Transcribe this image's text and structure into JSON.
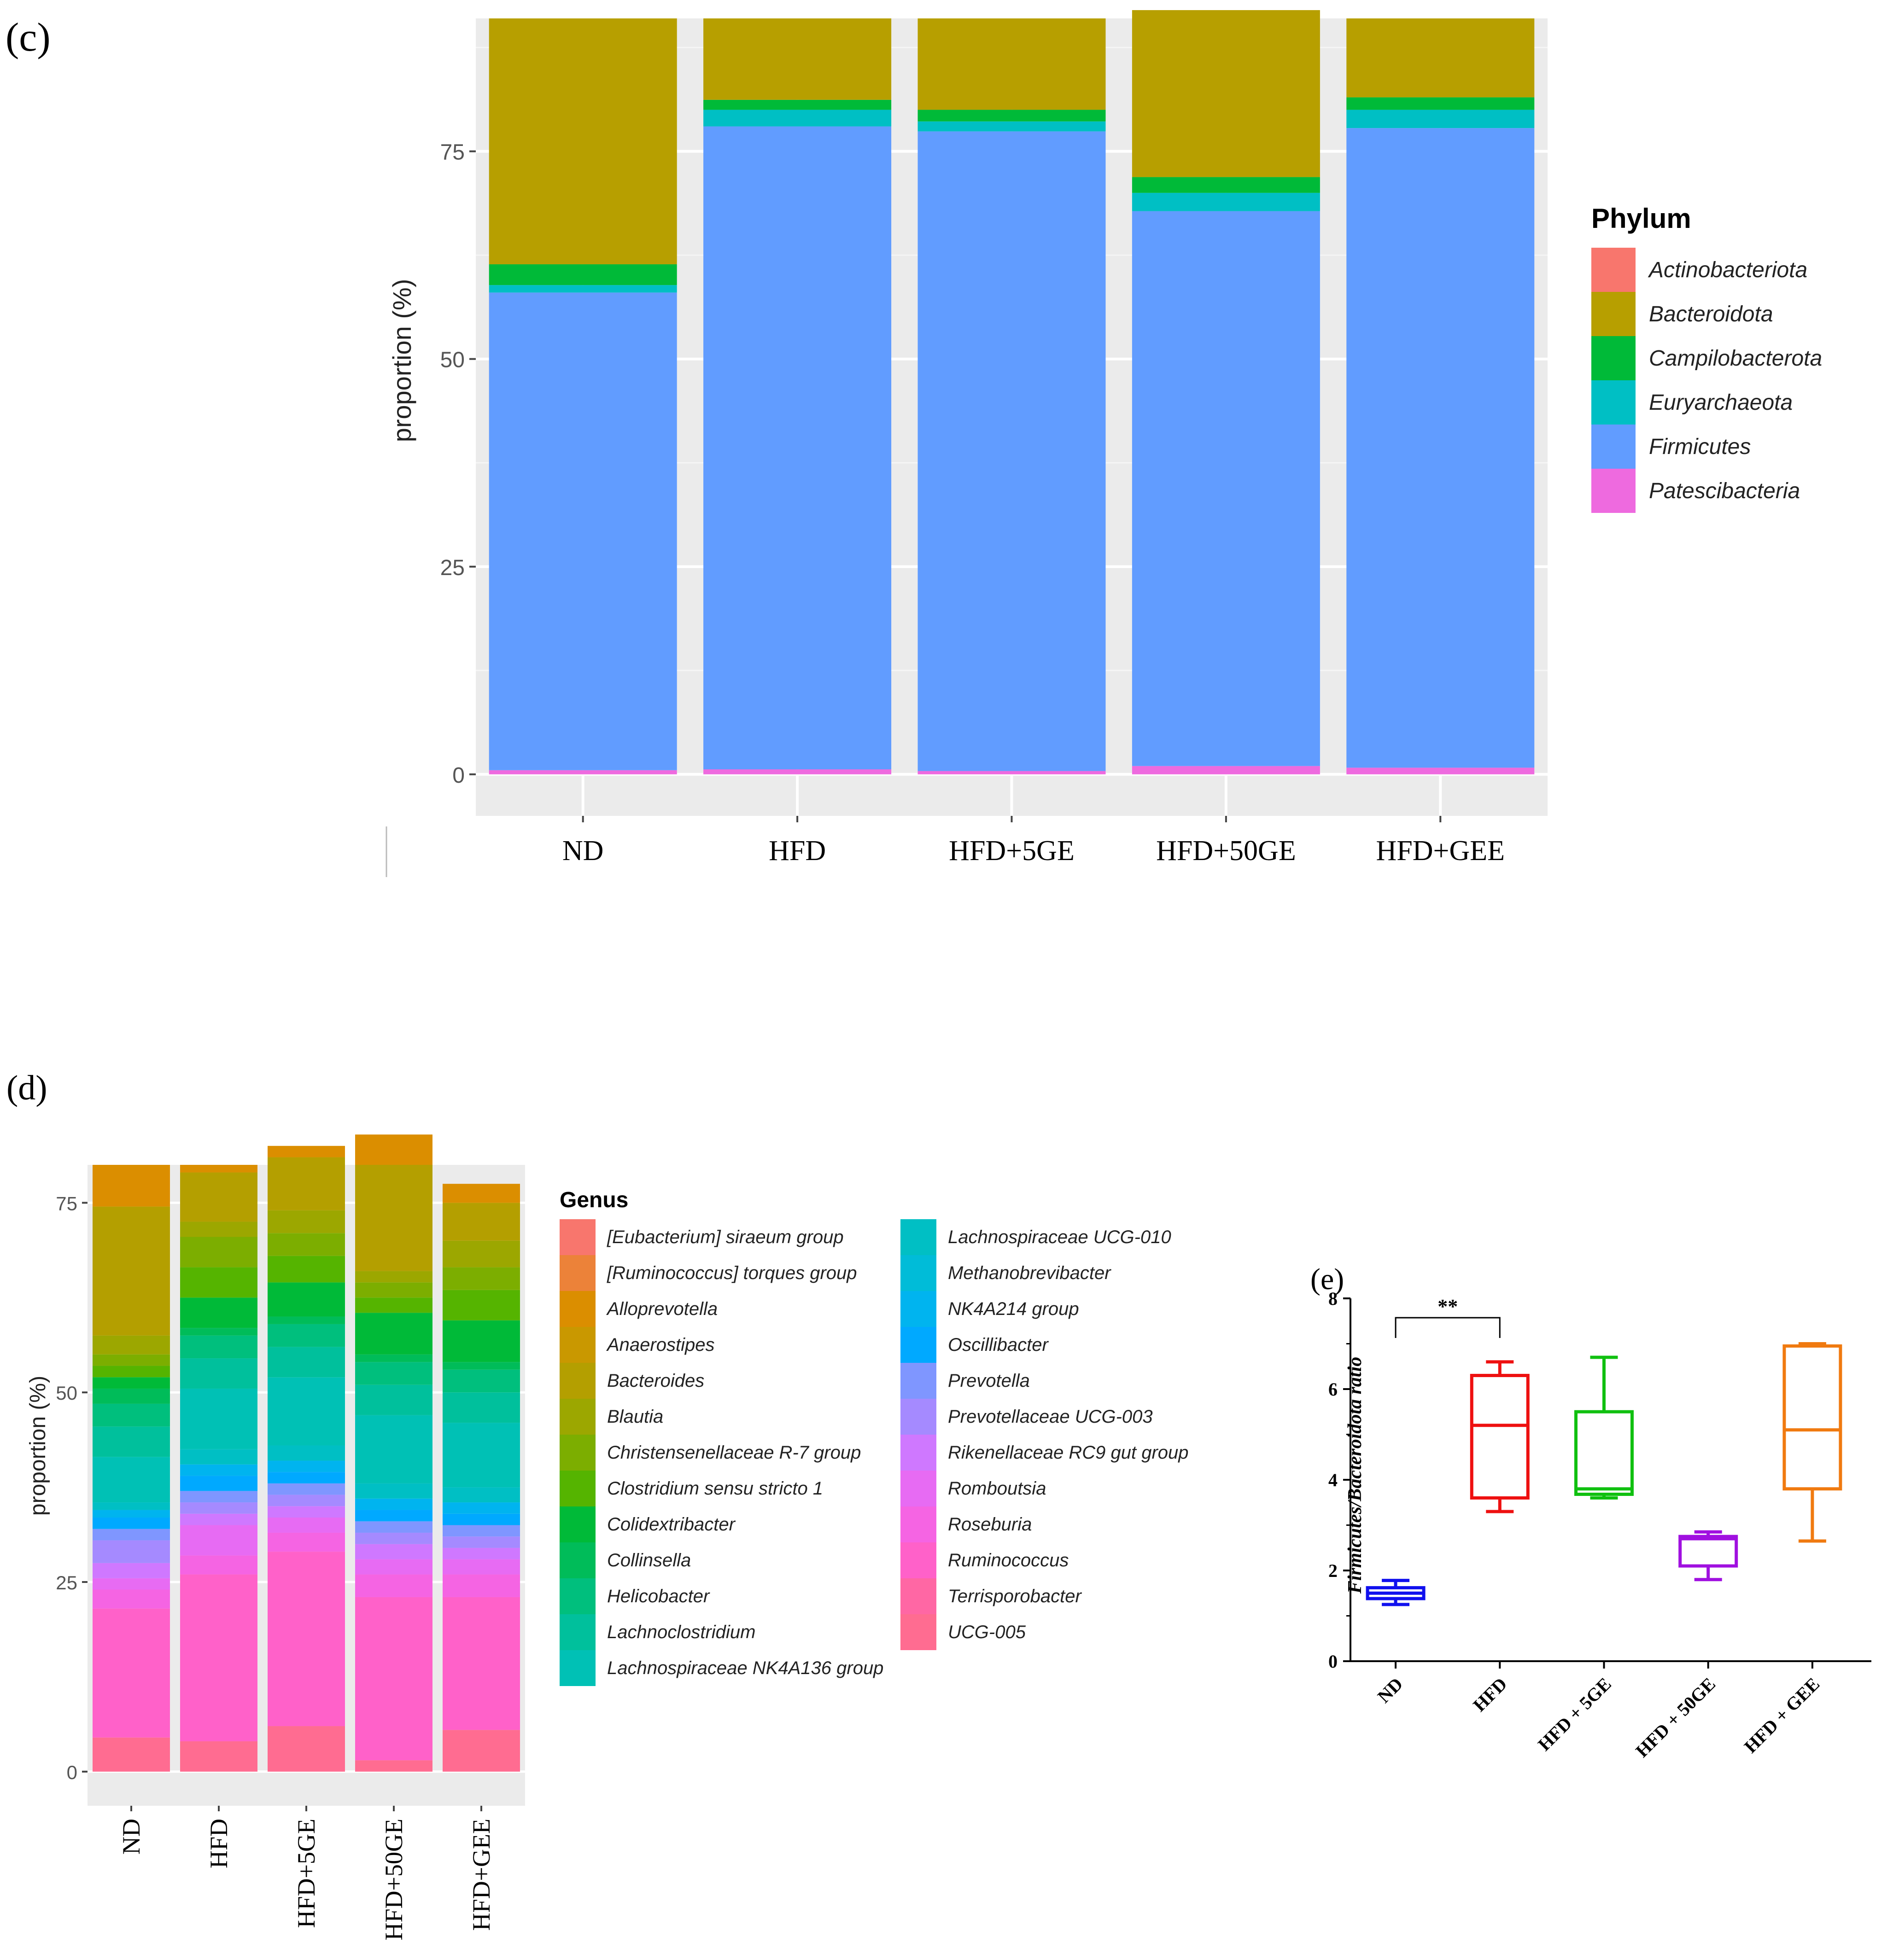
{
  "panels": {
    "c_label": "(c)",
    "d_label": "(d)",
    "e_label": "(e)"
  },
  "chart_data": [
    {
      "id": "c",
      "type": "bar",
      "stacked": true,
      "categories": [
        "ND",
        "HFD",
        "HFD+5GE",
        "HFD+50GE",
        "HFD+GEE"
      ],
      "ylabel": "proportion (%)",
      "ylim": [
        -5,
        91
      ],
      "yticks": [
        0,
        25,
        50,
        75
      ],
      "grid": true,
      "legend_title": "Phylum",
      "legend_position": "right",
      "series": [
        {
          "name": "Patescibacteria",
          "color": "#ee6adf",
          "values": [
            0.5,
            0.6,
            0.4,
            1.0,
            0.8
          ]
        },
        {
          "name": "Firmicutes",
          "color": "#619cff",
          "values": [
            57.5,
            77.4,
            77.0,
            66.8,
            77.0
          ]
        },
        {
          "name": "Euryarchaeota",
          "color": "#00bfc4",
          "values": [
            0.9,
            2.0,
            1.2,
            2.2,
            2.2
          ]
        },
        {
          "name": "Campilobacterota",
          "color": "#00ba38",
          "values": [
            2.5,
            1.2,
            1.4,
            1.9,
            1.5
          ]
        },
        {
          "name": "Bacteroidota",
          "color": "#b79f00",
          "values": [
            29.6,
            9.8,
            11.0,
            20.1,
            9.5
          ]
        },
        {
          "name": "Actinobacteriota",
          "color": "#f8766d",
          "values": [
            0,
            0,
            0,
            0,
            0
          ]
        }
      ],
      "legend_entries": [
        "Actinobacteriota",
        "Bacteroidota",
        "Campilobacterota",
        "Euryarchaeota",
        "Firmicutes",
        "Patescibacteria"
      ]
    },
    {
      "id": "d",
      "type": "bar",
      "stacked": true,
      "categories": [
        "ND",
        "HFD",
        "HFD+5GE",
        "HFD+50GE",
        "HFD+GEE"
      ],
      "ylabel": "proportion (%)",
      "ylim": [
        -4.5,
        80
      ],
      "yticks": [
        0,
        25,
        50,
        75
      ],
      "grid": true,
      "legend_title": "Genus",
      "legend_position": "right",
      "legend_entries": [
        {
          "name": "[Eubacterium] siraeum group",
          "color": "#f8766d"
        },
        {
          "name": "[Ruminococcus] torques group",
          "color": "#ec8239"
        },
        {
          "name": "Alloprevotella",
          "color": "#db8e00"
        },
        {
          "name": "Anaerostipes",
          "color": "#c99800"
        },
        {
          "name": "Bacteroides",
          "color": "#b49f00"
        },
        {
          "name": "Blautia",
          "color": "#9ca700"
        },
        {
          "name": "Christensenellaceae R-7 group",
          "color": "#7cae00"
        },
        {
          "name": "Clostridium sensu stricto 1",
          "color": "#55b400"
        },
        {
          "name": "Colidextribacter",
          "color": "#00ba38"
        },
        {
          "name": "Collinsella",
          "color": "#00bc59"
        },
        {
          "name": "Helicobacter",
          "color": "#00bf7d"
        },
        {
          "name": "Lachnoclostridium",
          "color": "#00c09c"
        },
        {
          "name": "Lachnospiraceae NK4A136 group",
          "color": "#00c1b5"
        },
        {
          "name": "Lachnospiraceae UCG-010",
          "color": "#00bfc4"
        },
        {
          "name": "Methanobrevibacter",
          "color": "#00bcd8"
        },
        {
          "name": "NK4A214 group",
          "color": "#00b4ef"
        },
        {
          "name": "Oscillibacter",
          "color": "#00a9ff"
        },
        {
          "name": "Prevotella",
          "color": "#7f96ff"
        },
        {
          "name": "Prevotellaceae UCG-003",
          "color": "#a58aff"
        },
        {
          "name": "Rikenellaceae RC9 gut group",
          "color": "#cf78ff"
        },
        {
          "name": "Romboutsia",
          "color": "#e76bf3"
        },
        {
          "name": "Roseburia",
          "color": "#f564e3"
        },
        {
          "name": "Ruminococcus",
          "color": "#ff61c9"
        },
        {
          "name": "Terrisporobacter",
          "color": "#ff67a4"
        },
        {
          "name": "UCG-005",
          "color": "#ff6c91"
        }
      ],
      "stacks": [
        {
          "category": "ND",
          "segments": [
            {
              "name": "UCG-005",
              "value": 4.5
            },
            {
              "name": "Ruminococcus",
              "value": 17.0
            },
            {
              "name": "Roseburia",
              "value": 2.5
            },
            {
              "name": "Romboutsia",
              "value": 1.5
            },
            {
              "name": "Rikenellaceae RC9 gut group",
              "value": 2.0
            },
            {
              "name": "Prevotellaceae UCG-003",
              "value": 3.0
            },
            {
              "name": "Prevotella",
              "value": 1.5
            },
            {
              "name": "Oscillibacter",
              "value": 1.5
            },
            {
              "name": "NK4A214 group",
              "value": 1.0
            },
            {
              "name": "Lachnospiraceae UCG-010",
              "value": 1.0
            },
            {
              "name": "Lachnospiraceae NK4A136 group",
              "value": 6.0
            },
            {
              "name": "Lachnoclostridium",
              "value": 4.0
            },
            {
              "name": "Helicobacter",
              "value": 3.0
            },
            {
              "name": "Collinsella",
              "value": 2.0
            },
            {
              "name": "Colidextribacter",
              "value": 1.5
            },
            {
              "name": "Clostridium sensu stricto 1",
              "value": 1.5
            },
            {
              "name": "Christensenellaceae R-7 group",
              "value": 1.5
            },
            {
              "name": "Blautia",
              "value": 2.5
            },
            {
              "name": "Bacteroides",
              "value": 17.0
            },
            {
              "name": "Alloprevotella",
              "value": 5.5
            }
          ]
        },
        {
          "category": "HFD",
          "segments": [
            {
              "name": "UCG-005",
              "value": 4.0
            },
            {
              "name": "Ruminococcus",
              "value": 22.0
            },
            {
              "name": "Roseburia",
              "value": 2.5
            },
            {
              "name": "Romboutsia",
              "value": 4.0
            },
            {
              "name": "Rikenellaceae RC9 gut group",
              "value": 1.5
            },
            {
              "name": "Prevotellaceae UCG-003",
              "value": 1.5
            },
            {
              "name": "Prevotella",
              "value": 1.5
            },
            {
              "name": "Oscillibacter",
              "value": 2.0
            },
            {
              "name": "NK4A214 group",
              "value": 1.5
            },
            {
              "name": "Lachnospiraceae UCG-010",
              "value": 2.0
            },
            {
              "name": "Lachnospiraceae NK4A136 group",
              "value": 8.0
            },
            {
              "name": "Lachnoclostridium",
              "value": 4.0
            },
            {
              "name": "Helicobacter",
              "value": 3.0
            },
            {
              "name": "Collinsella",
              "value": 1.0
            },
            {
              "name": "Colidextribacter",
              "value": 4.0
            },
            {
              "name": "Clostridium sensu stricto 1",
              "value": 4.0
            },
            {
              "name": "Christensenellaceae R-7 group",
              "value": 4.0
            },
            {
              "name": "Blautia",
              "value": 2.0
            },
            {
              "name": "Bacteroides",
              "value": 6.5
            },
            {
              "name": "Alloprevotella",
              "value": 1.0
            }
          ]
        },
        {
          "category": "HFD+5GE",
          "segments": [
            {
              "name": "UCG-005",
              "value": 6.0
            },
            {
              "name": "Ruminococcus",
              "value": 23.0
            },
            {
              "name": "Roseburia",
              "value": 2.5
            },
            {
              "name": "Romboutsia",
              "value": 2.0
            },
            {
              "name": "Rikenellaceae RC9 gut group",
              "value": 1.5
            },
            {
              "name": "Prevotellaceae UCG-003",
              "value": 1.5
            },
            {
              "name": "Prevotella",
              "value": 1.5
            },
            {
              "name": "Oscillibacter",
              "value": 1.5
            },
            {
              "name": "NK4A214 group",
              "value": 1.5
            },
            {
              "name": "Lachnospiraceae UCG-010",
              "value": 2.0
            },
            {
              "name": "Lachnospiraceae NK4A136 group",
              "value": 9.0
            },
            {
              "name": "Lachnoclostridium",
              "value": 4.0
            },
            {
              "name": "Helicobacter",
              "value": 3.0
            },
            {
              "name": "Collinsella",
              "value": 1.0
            },
            {
              "name": "Colidextribacter",
              "value": 4.5
            },
            {
              "name": "Clostridium sensu stricto 1",
              "value": 3.5
            },
            {
              "name": "Christensenellaceae R-7 group",
              "value": 3.0
            },
            {
              "name": "Blautia",
              "value": 3.0
            },
            {
              "name": "Bacteroides",
              "value": 7.0
            },
            {
              "name": "Alloprevotella",
              "value": 1.5
            }
          ]
        },
        {
          "category": "HFD+50GE",
          "segments": [
            {
              "name": "UCG-005",
              "value": 1.5
            },
            {
              "name": "Ruminococcus",
              "value": 21.5
            },
            {
              "name": "Roseburia",
              "value": 3.0
            },
            {
              "name": "Romboutsia",
              "value": 2.0
            },
            {
              "name": "Rikenellaceae RC9 gut group",
              "value": 2.0
            },
            {
              "name": "Prevotellaceae UCG-003",
              "value": 1.5
            },
            {
              "name": "Prevotella",
              "value": 1.5
            },
            {
              "name": "Oscillibacter",
              "value": 1.5
            },
            {
              "name": "NK4A214 group",
              "value": 1.5
            },
            {
              "name": "Lachnospiraceae UCG-010",
              "value": 2.0
            },
            {
              "name": "Lachnospiraceae NK4A136 group",
              "value": 9.0
            },
            {
              "name": "Lachnoclostridium",
              "value": 4.0
            },
            {
              "name": "Helicobacter",
              "value": 3.0
            },
            {
              "name": "Collinsella",
              "value": 1.0
            },
            {
              "name": "Colidextribacter",
              "value": 5.5
            },
            {
              "name": "Clostridium sensu stricto 1",
              "value": 2.0
            },
            {
              "name": "Christensenellaceae R-7 group",
              "value": 2.0
            },
            {
              "name": "Blautia",
              "value": 1.5
            },
            {
              "name": "Bacteroides",
              "value": 14.0
            },
            {
              "name": "Alloprevotella",
              "value": 4.0
            }
          ]
        },
        {
          "category": "HFD+GEE",
          "segments": [
            {
              "name": "UCG-005",
              "value": 5.5
            },
            {
              "name": "Ruminococcus",
              "value": 17.5
            },
            {
              "name": "Roseburia",
              "value": 3.0
            },
            {
              "name": "Romboutsia",
              "value": 2.0
            },
            {
              "name": "Rikenellaceae RC9 gut group",
              "value": 1.5
            },
            {
              "name": "Prevotellaceae UCG-003",
              "value": 1.5
            },
            {
              "name": "Prevotella",
              "value": 1.5
            },
            {
              "name": "Oscillibacter",
              "value": 1.5
            },
            {
              "name": "NK4A214 group",
              "value": 1.5
            },
            {
              "name": "Lachnospiraceae UCG-010",
              "value": 2.0
            },
            {
              "name": "Lachnospiraceae NK4A136 group",
              "value": 8.5
            },
            {
              "name": "Lachnoclostridium",
              "value": 4.0
            },
            {
              "name": "Helicobacter",
              "value": 3.0
            },
            {
              "name": "Collinsella",
              "value": 1.0
            },
            {
              "name": "Colidextribacter",
              "value": 5.5
            },
            {
              "name": "Clostridium sensu stricto 1",
              "value": 4.0
            },
            {
              "name": "Christensenellaceae R-7 group",
              "value": 3.0
            },
            {
              "name": "Blautia",
              "value": 3.5
            },
            {
              "name": "Bacteroides",
              "value": 5.0
            },
            {
              "name": "Alloprevotella",
              "value": 2.5
            }
          ]
        }
      ]
    },
    {
      "id": "e",
      "type": "box",
      "categories": [
        "ND",
        "HFD",
        "HFD + 5GE",
        "HFD + 50GE",
        "HFD + GEE"
      ],
      "ylabel": "Firmicutes/Bacteroidota ratio",
      "ylim": [
        0,
        8
      ],
      "yticks": [
        0,
        2,
        4,
        6,
        8
      ],
      "annotation": {
        "text": "**",
        "from": "ND",
        "to": "HFD"
      },
      "boxes": [
        {
          "category": "ND",
          "color": "#1010ee",
          "min": 1.25,
          "q1": 1.38,
          "median": 1.5,
          "q3": 1.62,
          "max": 1.78
        },
        {
          "category": "HFD",
          "color": "#ee1010",
          "min": 3.3,
          "q1": 3.6,
          "median": 5.2,
          "q3": 6.3,
          "max": 6.6
        },
        {
          "category": "HFD + 5GE",
          "color": "#10c010",
          "min": 3.6,
          "q1": 3.68,
          "median": 3.8,
          "q3": 5.5,
          "max": 6.7
        },
        {
          "category": "HFD + 50GE",
          "color": "#a010e0",
          "min": 1.8,
          "q1": 2.1,
          "median": 2.7,
          "q3": 2.75,
          "max": 2.85
        },
        {
          "category": "HFD + GEE",
          "color": "#f07a10",
          "min": 2.65,
          "q1": 3.8,
          "median": 5.1,
          "q3": 6.95,
          "max": 7.0
        }
      ]
    }
  ]
}
